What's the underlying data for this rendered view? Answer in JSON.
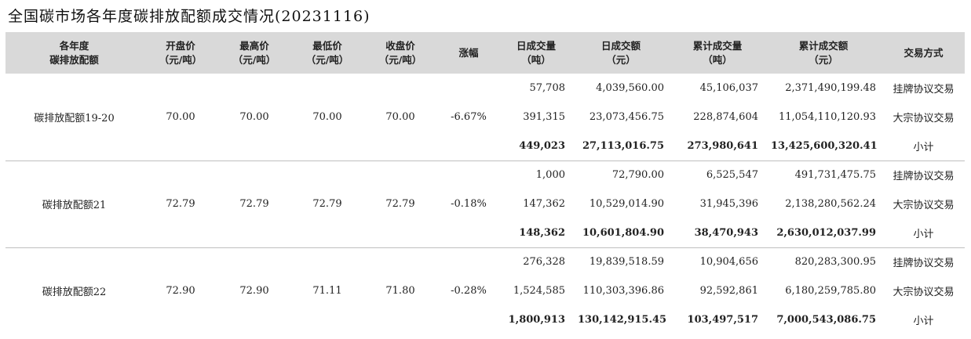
{
  "title": "全国碳市场各年度碳排放配额成交情况(20231116)",
  "columns": [
    [
      "各年度",
      "碳排放配额"
    ],
    [
      "开盘价",
      "（元/吨）"
    ],
    [
      "最高价",
      "（元/吨）"
    ],
    [
      "最低价",
      "（元/吨）"
    ],
    [
      "收盘价",
      "（元/吨）"
    ],
    [
      "涨幅"
    ],
    [
      "日成交量",
      "（吨）"
    ],
    [
      "日成交额",
      "（元）"
    ],
    [
      "累计成交量",
      "（吨）"
    ],
    [
      "累计成交额",
      "（元）"
    ],
    [
      "交易方式"
    ]
  ],
  "groups": [
    {
      "name": "碳排放配额19-20",
      "open": "70.00",
      "high": "70.00",
      "low": "70.00",
      "close": "70.00",
      "change": "-6.67%",
      "rows": [
        {
          "vol": "57,708",
          "amt": "4,039,560.00",
          "cumvol": "45,106,037",
          "cumamt": "2,371,490,199.48",
          "method": "挂牌协议交易"
        },
        {
          "vol": "391,315",
          "amt": "23,073,456.75",
          "cumvol": "228,874,604",
          "cumamt": "11,054,110,120.93",
          "method": "大宗协议交易"
        },
        {
          "vol": "449,023",
          "amt": "27,113,016.75",
          "cumvol": "273,980,641",
          "cumamt": "13,425,600,320.41",
          "method": "小计"
        }
      ]
    },
    {
      "name": "碳排放配额21",
      "open": "72.79",
      "high": "72.79",
      "low": "72.79",
      "close": "72.79",
      "change": "-0.18%",
      "rows": [
        {
          "vol": "1,000",
          "amt": "72,790.00",
          "cumvol": "6,525,547",
          "cumamt": "491,731,475.75",
          "method": "挂牌协议交易"
        },
        {
          "vol": "147,362",
          "amt": "10,529,014.90",
          "cumvol": "31,945,396",
          "cumamt": "2,138,280,562.24",
          "method": "大宗协议交易"
        },
        {
          "vol": "148,362",
          "amt": "10,601,804.90",
          "cumvol": "38,470,943",
          "cumamt": "2,630,012,037.99",
          "method": "小计"
        }
      ]
    },
    {
      "name": "碳排放配额22",
      "open": "72.90",
      "high": "72.90",
      "low": "71.11",
      "close": "71.80",
      "change": "-0.28%",
      "rows": [
        {
          "vol": "276,328",
          "amt": "19,839,518.59",
          "cumvol": "10,904,656",
          "cumamt": "820,283,300.95",
          "method": "挂牌协议交易"
        },
        {
          "vol": "1,524,585",
          "amt": "110,303,396.86",
          "cumvol": "92,592,861",
          "cumamt": "6,180,259,785.80",
          "method": "大宗协议交易"
        },
        {
          "vol": "1,800,913",
          "amt": "130,142,915.45",
          "cumvol": "103,497,517",
          "cumamt": "7,000,543,086.75",
          "method": "小计"
        }
      ]
    }
  ]
}
